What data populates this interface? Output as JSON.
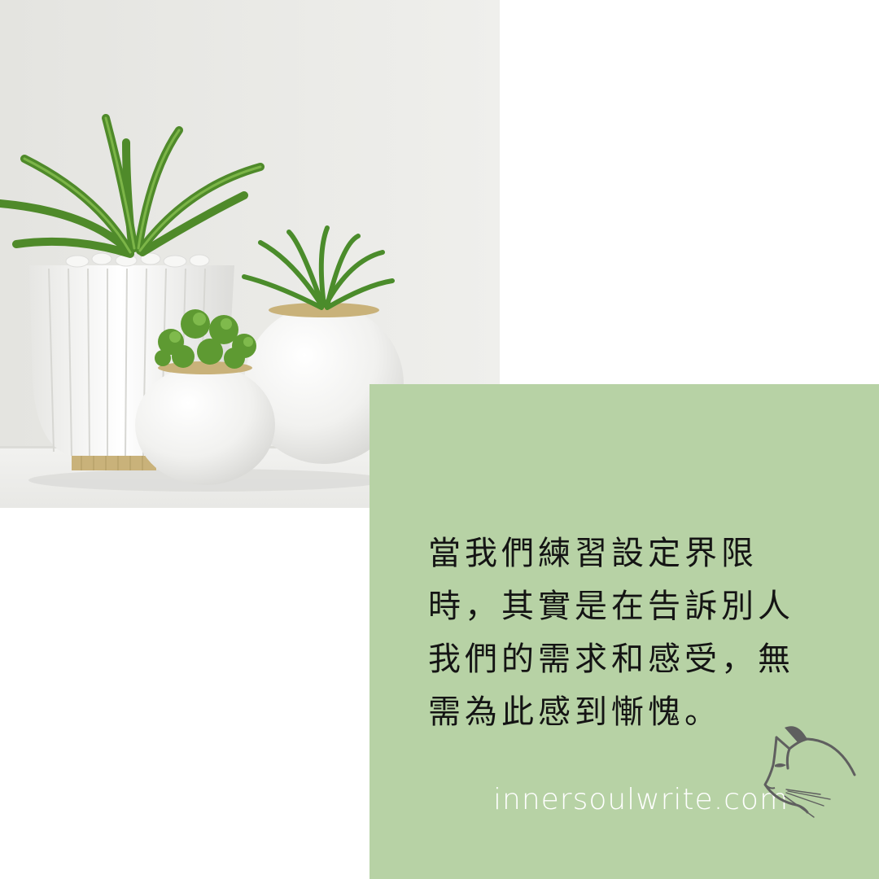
{
  "quote": {
    "lines": [
      "當我們練習設定界限",
      "時，其實是在告訴別人",
      "我們的需求和感受，無",
      "需為此感到慚愧。"
    ]
  },
  "website": "innersoulwrite.com",
  "icons": {
    "cat": "cat-head-line-art-icon"
  },
  "colors": {
    "card_green": "#b7d2a5",
    "wall": "#e9e9e6",
    "text_dark": "#141414",
    "website_text": "#ffffff"
  }
}
